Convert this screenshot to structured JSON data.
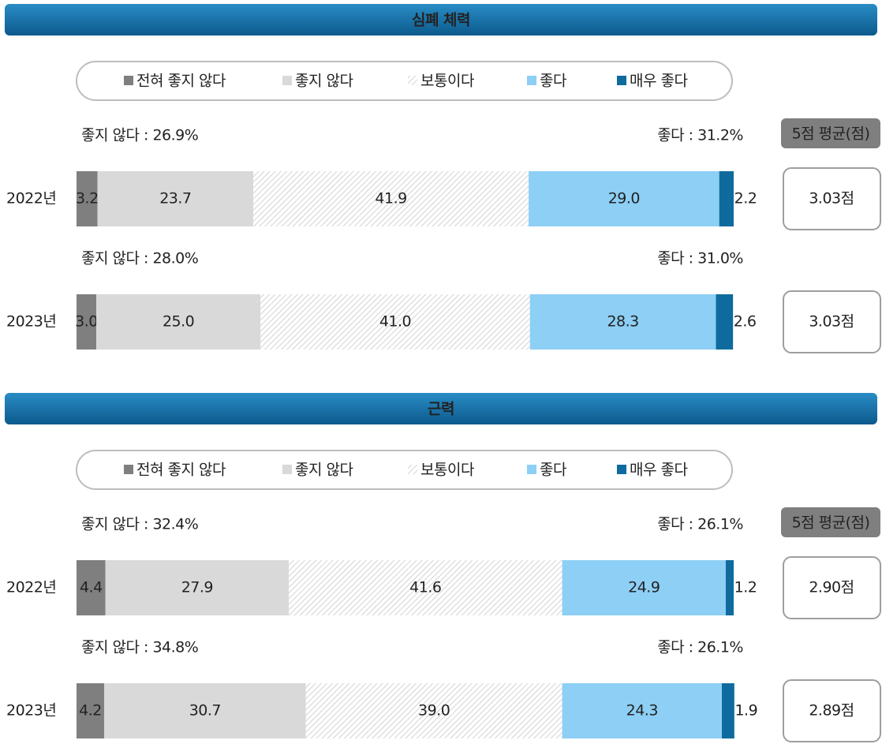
{
  "chart_data": [
    {
      "type": "bar",
      "title": "심폐 체력",
      "categories": [
        "2022년",
        "2023년"
      ],
      "xlim": [
        0,
        100
      ],
      "series": [
        {
          "name": "전혀 좋지 않다",
          "color": "#7f7f7f",
          "values": [
            3.2,
            3.0
          ],
          "value_labels": [
            "3.2",
            "3.0"
          ]
        },
        {
          "name": "좋지 않다",
          "color": "#d9d9d9",
          "values": [
            23.7,
            25.0
          ],
          "value_labels": [
            "23.7",
            "25.0"
          ]
        },
        {
          "name": "보통이다",
          "color": "#c4c4c4",
          "pattern": "diagonal",
          "values": [
            41.9,
            41.0
          ],
          "value_labels": [
            "41.9",
            "41.0"
          ]
        },
        {
          "name": "좋다",
          "color": "#8dcff5",
          "values": [
            29.0,
            28.3
          ],
          "value_labels": [
            "29.0",
            "28.3"
          ]
        },
        {
          "name": "매우 좋다",
          "color": "#0f6b9e",
          "values": [
            2.2,
            2.6
          ],
          "value_labels": [
            "2.2",
            "2.6"
          ]
        }
      ],
      "negative_labels": [
        "좋지 않다 : 26.9%",
        "좋지 않다 : 28.0%"
      ],
      "positive_labels": [
        "좋다 : 31.2%",
        "좋다 : 31.0%"
      ],
      "average_title": "5점 평균(점)",
      "averages": [
        3.03,
        3.03
      ],
      "average_labels": [
        "3.03점",
        "3.03점"
      ]
    },
    {
      "type": "bar",
      "title": "근력",
      "categories": [
        "2022년",
        "2023년"
      ],
      "xlim": [
        0,
        100
      ],
      "series": [
        {
          "name": "전혀 좋지 않다",
          "color": "#7f7f7f",
          "values": [
            4.4,
            4.2
          ],
          "value_labels": [
            "4.4",
            "4.2"
          ]
        },
        {
          "name": "좋지 않다",
          "color": "#d9d9d9",
          "values": [
            27.9,
            30.7
          ],
          "value_labels": [
            "27.9",
            "30.7"
          ]
        },
        {
          "name": "보통이다",
          "color": "#c4c4c4",
          "pattern": "diagonal",
          "values": [
            41.6,
            39.0
          ],
          "value_labels": [
            "41.6",
            "39.0"
          ]
        },
        {
          "name": "좋다",
          "color": "#8dcff5",
          "values": [
            24.9,
            24.3
          ],
          "value_labels": [
            "24.9",
            "24.3"
          ]
        },
        {
          "name": "매우 좋다",
          "color": "#0f6b9e",
          "values": [
            1.2,
            1.9
          ],
          "value_labels": [
            "1.2",
            "1.9"
          ]
        }
      ],
      "negative_labels": [
        "좋지 않다 : 32.4%",
        "좋지 않다 : 34.8%"
      ],
      "positive_labels": [
        "좋다 : 26.1%",
        "좋다 : 26.1%"
      ],
      "average_title": "5점 평균(점)",
      "averages": [
        2.9,
        2.89
      ],
      "average_labels": [
        "2.90점",
        "2.89점"
      ]
    }
  ]
}
